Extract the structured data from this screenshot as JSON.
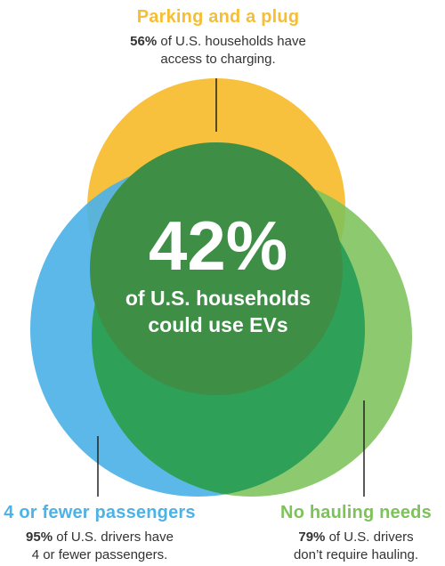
{
  "colors": {
    "parking": "#F7BE33",
    "passengers": "#4DB2E6",
    "hauling": "#7DC25A",
    "overlap": "#2FA058",
    "center": "#3E8E45"
  },
  "parking": {
    "title": "Parking and a plug",
    "pct": "56%",
    "desc_line1": "of U.S. households have",
    "desc_line2": "access to charging."
  },
  "passengers": {
    "title": "4 or fewer passengers",
    "pct": "95%",
    "desc_line1": "of U.S. drivers have",
    "desc_line2": "4 or fewer passengers."
  },
  "hauling": {
    "title": "No hauling needs",
    "pct": "79%",
    "desc_line1": "of U.S. drivers",
    "desc_line2": "don’t require hauling."
  },
  "center": {
    "pct": "42%",
    "line1": "of U.S. households",
    "line2": "could use EVs"
  }
}
